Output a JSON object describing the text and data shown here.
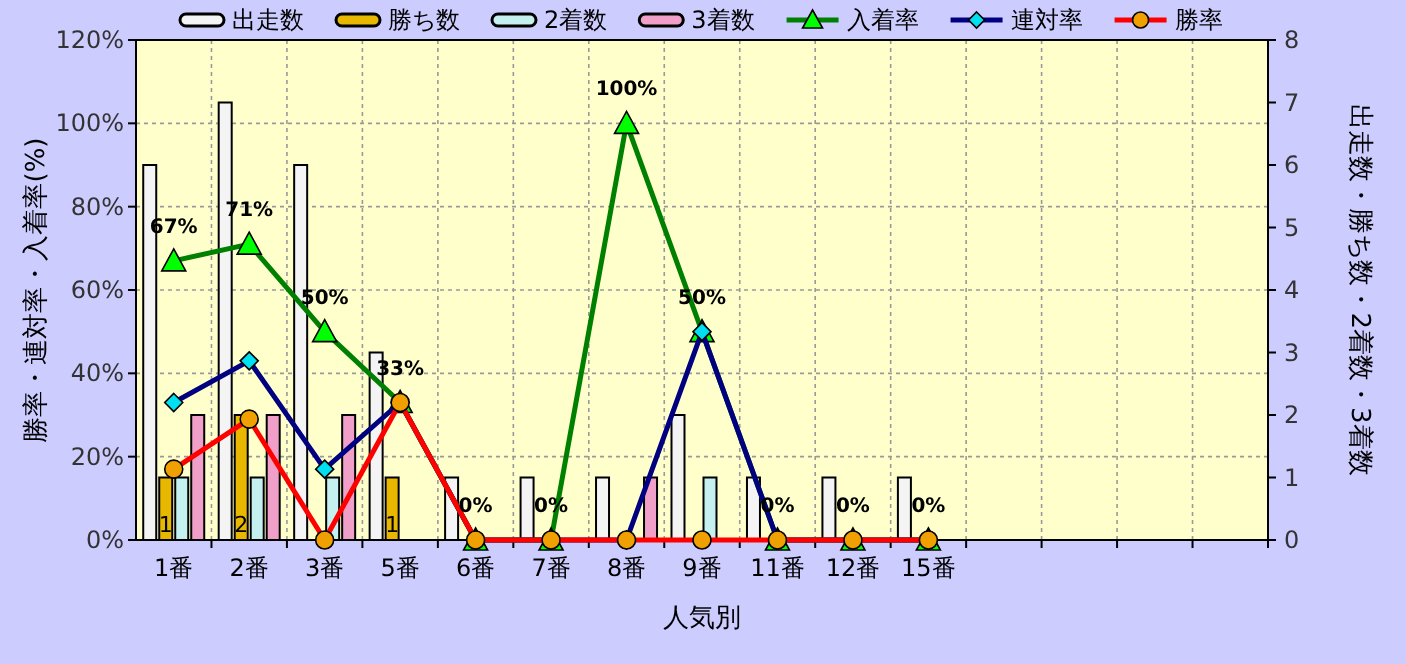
{
  "chart_data": {
    "type": "bar",
    "xlabel": "人気別",
    "ylabel": "勝率・連対率・入着率(%)",
    "y2label": "出走数・勝ち数・2着数・3着数",
    "categories": [
      "1番",
      "2番",
      "3番",
      "5番",
      "6番",
      "7番",
      "8番",
      "9番",
      "11番",
      "12番",
      "15番",
      null,
      null,
      null,
      null
    ],
    "ylim": [
      0,
      120
    ],
    "yticks": [
      {
        "value": 0,
        "label": "0%"
      },
      {
        "value": 20,
        "label": "20%"
      },
      {
        "value": 40,
        "label": "40%"
      },
      {
        "value": 60,
        "label": "60%"
      },
      {
        "value": 80,
        "label": "80%"
      },
      {
        "value": 100,
        "label": "100%"
      },
      {
        "value": 120,
        "label": "120%"
      }
    ],
    "y2lim": [
      0,
      8
    ],
    "y2ticks": [
      0,
      1,
      2,
      3,
      4,
      5,
      6,
      7,
      8
    ],
    "grid": true,
    "legend": "top",
    "series": [
      {
        "name": "出走数",
        "type": "bar",
        "axis": "y2",
        "color": "#f4f4f4",
        "values": [
          6,
          7,
          6,
          3,
          1,
          1,
          1,
          2,
          1,
          1,
          1,
          null,
          null,
          null,
          null
        ]
      },
      {
        "name": "勝ち数",
        "type": "bar",
        "axis": "y2",
        "color": "#e8b800",
        "values": [
          1,
          2,
          0,
          1,
          0,
          0,
          0,
          0,
          0,
          0,
          0,
          null,
          null,
          null,
          null
        ],
        "value_labels": [
          "1",
          "2",
          null,
          "1",
          null,
          null,
          null,
          null,
          null,
          null,
          null,
          null,
          null,
          null,
          null
        ]
      },
      {
        "name": "2着数",
        "type": "bar",
        "axis": "y2",
        "color": "#c4f0f0",
        "values": [
          1,
          1,
          1,
          0,
          0,
          0,
          0,
          1,
          0,
          0,
          0,
          null,
          null,
          null,
          null
        ]
      },
      {
        "name": "3着数",
        "type": "bar",
        "axis": "y2",
        "color": "#f0a0c8",
        "values": [
          2,
          2,
          2,
          0,
          0,
          0,
          1,
          0,
          0,
          0,
          0,
          null,
          null,
          null,
          null
        ]
      },
      {
        "name": "入着率",
        "type": "line",
        "color": "#008000",
        "marker": "triangle",
        "colors": [
          "#00ff00",
          "#00ff00",
          "#00ff00",
          "#00ff00",
          "#00ff00",
          "#00ff00",
          "#00ff00",
          "#00ff00",
          "#00ff00",
          "#00ff00",
          "#00ff00",
          null,
          null,
          null,
          null
        ],
        "values": [
          67,
          71,
          50,
          33,
          0,
          0,
          100,
          50,
          0,
          0,
          0,
          null,
          null,
          null,
          null
        ],
        "value_labels": [
          "67%",
          "71%",
          "50%",
          "33%",
          "0%",
          "0%",
          "100%",
          "50%",
          "0%",
          "0%",
          "0%",
          null,
          null,
          null,
          null
        ]
      },
      {
        "name": "連対率",
        "type": "line",
        "color": "#000080",
        "marker": "diamond",
        "colors": [
          "#00e0f0",
          "#00e0f0",
          "#00e0f0",
          "#00e0f0",
          "#00e0f0",
          "#00e0f0",
          "#00e0f0",
          "#00e0f0",
          "#00e0f0",
          "#00e0f0",
          "#00e0f0",
          null,
          null,
          null,
          null
        ],
        "values": [
          33,
          43,
          17,
          33,
          0,
          0,
          0,
          50,
          0,
          0,
          0,
          null,
          null,
          null,
          null
        ]
      },
      {
        "name": "勝率",
        "type": "line",
        "color": "#ff0000",
        "marker": "circle",
        "colors": [
          "#f0a000",
          "#f0a000",
          "#f0a000",
          "#f0a000",
          "#f0a000",
          "#f0a000",
          "#f0a000",
          "#f0a000",
          "#f0a000",
          "#f0a000",
          "#f0a000",
          null,
          null,
          null,
          null
        ],
        "values": [
          17,
          29,
          0,
          33,
          0,
          0,
          0,
          0,
          0,
          0,
          0,
          null,
          null,
          null,
          null
        ]
      }
    ]
  }
}
